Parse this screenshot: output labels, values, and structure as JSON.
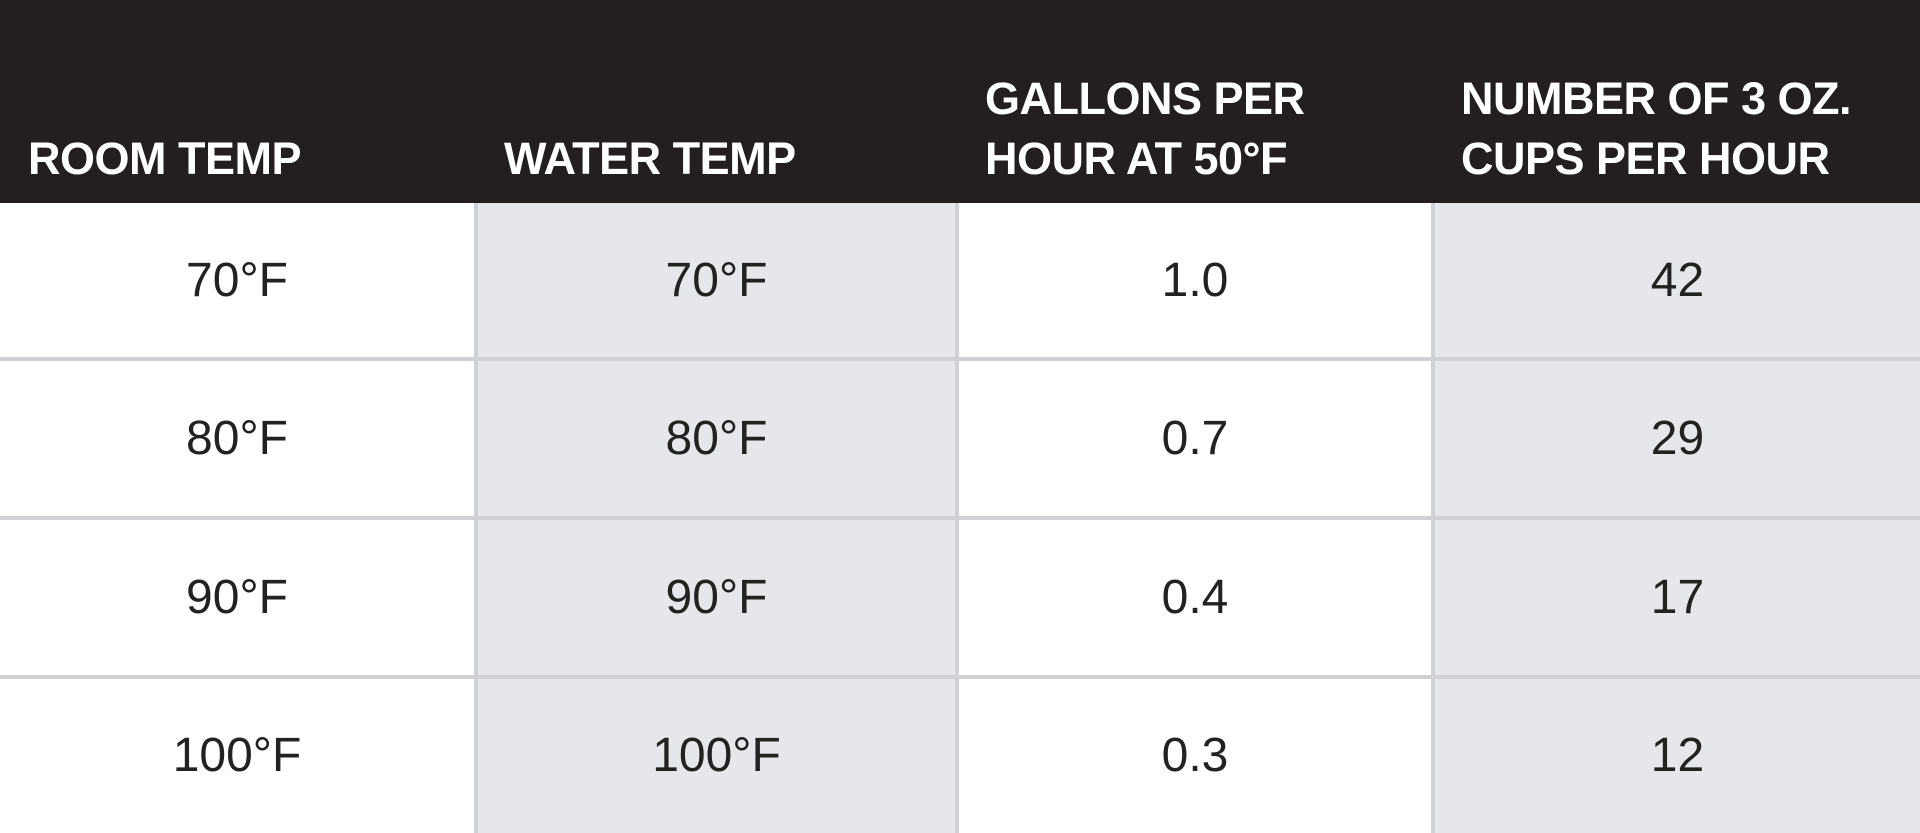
{
  "table": {
    "header": [
      "ROOM TEMP",
      "WATER TEMP",
      "GALLONS PER HOUR AT 50°F",
      "NUMBER OF 3 OZ. CUPS PER HOUR"
    ],
    "rows": [
      [
        "70°F",
        "70°F",
        "1.0",
        "42"
      ],
      [
        "80°F",
        "80°F",
        "0.7",
        "29"
      ],
      [
        "90°F",
        "90°F",
        "0.4",
        "17"
      ],
      [
        "100°F",
        "100°F",
        "0.3",
        "12"
      ]
    ]
  }
}
